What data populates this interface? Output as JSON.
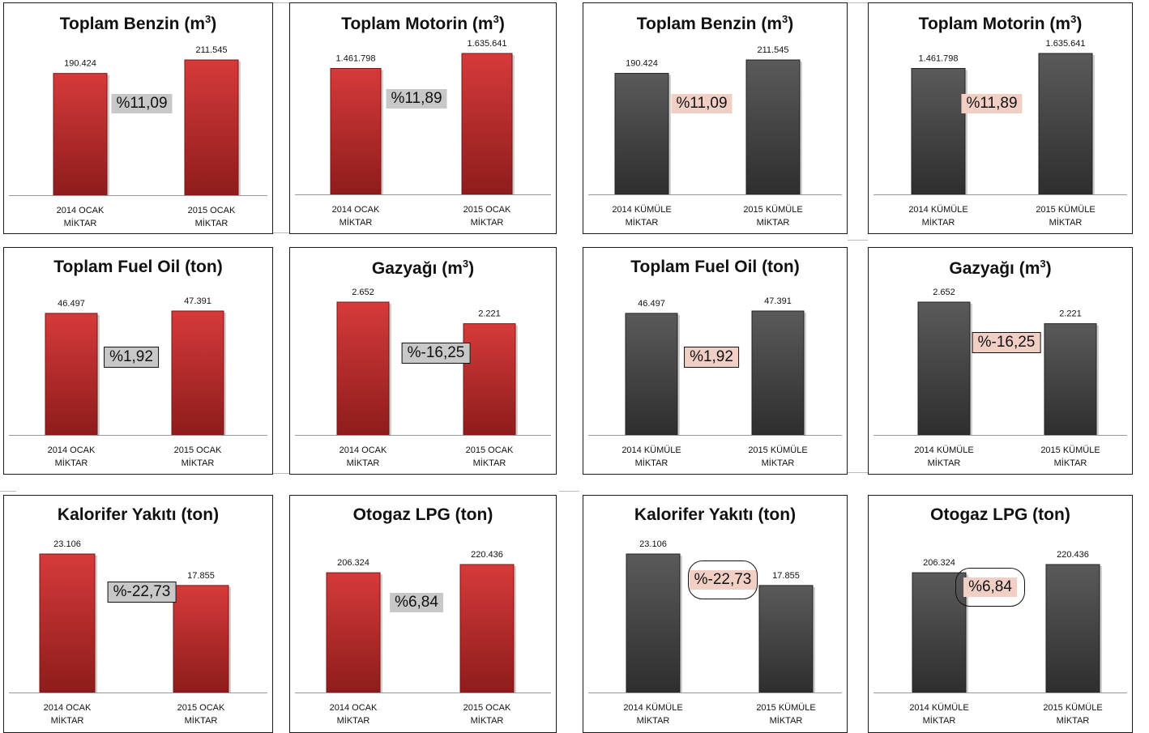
{
  "colors": {
    "red_bar": "#d63a3a",
    "red_bar_dark": "#8e1c1c",
    "grey_bar": "#5a5a5a",
    "grey_bar_dark": "#2e2e2e",
    "pct_grey_bg": "#c8c8c8",
    "pct_pink_bg": "#f2cfc4"
  },
  "chart_data": [
    {
      "type": "bar",
      "title": "Toplam Benzin (m",
      "title_sup": "3",
      "title_end": ")",
      "categories": [
        [
          "2014 OCAK",
          "MİKTAR"
        ],
        [
          "2015 OCAK",
          "MİKTAR"
        ]
      ],
      "values": [
        190424,
        211545
      ],
      "value_labels": [
        "190.424",
        "211.545"
      ],
      "change_label": "%11,09",
      "bar_color": "red",
      "pct_style": "grey"
    },
    {
      "type": "bar",
      "title": "Toplam Motorin (m",
      "title_sup": "3",
      "title_end": ")",
      "categories": [
        [
          "2014 OCAK",
          "MİKTAR"
        ],
        [
          "2015 OCAK",
          "MİKTAR"
        ]
      ],
      "values": [
        1461798,
        1635641
      ],
      "value_labels": [
        "1.461.798",
        "1.635.641"
      ],
      "change_label": "%11,89",
      "bar_color": "red",
      "pct_style": "grey"
    },
    {
      "type": "bar",
      "title": "Toplam Benzin (m",
      "title_sup": "3",
      "title_end": ")",
      "categories": [
        [
          "2014 KÜMÜLE",
          "MİKTAR"
        ],
        [
          "2015 KÜMÜLE",
          "MİKTAR"
        ]
      ],
      "values": [
        190424,
        211545
      ],
      "value_labels": [
        "190.424",
        "211.545"
      ],
      "change_label": "%11,09",
      "bar_color": "grey",
      "pct_style": "pink"
    },
    {
      "type": "bar",
      "title": "Toplam Motorin (m",
      "title_sup": "3",
      "title_end": ")",
      "categories": [
        [
          "2014 KÜMÜLE",
          "MİKTAR"
        ],
        [
          "2015 KÜMÜLE",
          "MİKTAR"
        ]
      ],
      "values": [
        1461798,
        1635641
      ],
      "value_labels": [
        "1.461.798",
        "1.635.641"
      ],
      "change_label": "%11,89",
      "bar_color": "grey",
      "pct_style": "pink"
    },
    {
      "type": "bar",
      "title": "Toplam Fuel Oil (ton)",
      "title_sup": "",
      "title_end": "",
      "categories": [
        [
          "2014 OCAK",
          "MİKTAR"
        ],
        [
          "2015 OCAK",
          "MİKTAR"
        ]
      ],
      "values": [
        46497,
        47391
      ],
      "value_labels": [
        "46.497",
        "47.391"
      ],
      "change_label": "%1,92",
      "bar_color": "red",
      "pct_style": "grey-boxed"
    },
    {
      "type": "bar",
      "title": "Gazyağı (m",
      "title_sup": "3",
      "title_end": ")",
      "categories": [
        [
          "2014 OCAK",
          "MİKTAR"
        ],
        [
          "2015 OCAK",
          "MİKTAR"
        ]
      ],
      "values": [
        2652,
        2221
      ],
      "value_labels": [
        "2.652",
        "2.221"
      ],
      "change_label": "%-16,25",
      "bar_color": "red",
      "pct_style": "grey-boxed"
    },
    {
      "type": "bar",
      "title": "Toplam Fuel Oil (ton)",
      "title_sup": "",
      "title_end": "",
      "categories": [
        [
          "2014 KÜMÜLE",
          "MİKTAR"
        ],
        [
          "2015 KÜMÜLE",
          "MİKTAR"
        ]
      ],
      "values": [
        46497,
        47391
      ],
      "value_labels": [
        "46.497",
        "47.391"
      ],
      "change_label": "%1,92",
      "bar_color": "grey",
      "pct_style": "pink-boxed"
    },
    {
      "type": "bar",
      "title": "Gazyağı  (m",
      "title_sup": "3",
      "title_end": ")",
      "categories": [
        [
          "2014 KÜMÜLE",
          "MİKTAR"
        ],
        [
          "2015 KÜMÜLE",
          "MİKTAR"
        ]
      ],
      "values": [
        2652,
        2221
      ],
      "value_labels": [
        "2.652",
        "2.221"
      ],
      "change_label": "%-16,25",
      "bar_color": "grey",
      "pct_style": "pink-boxed"
    },
    {
      "type": "bar",
      "title": "Kalorifer Yakıtı (ton)",
      "title_sup": "",
      "title_end": "",
      "categories": [
        [
          "2014 OCAK",
          "MİKTAR"
        ],
        [
          "2015 OCAK",
          "MİKTAR"
        ]
      ],
      "values": [
        23106,
        17855
      ],
      "value_labels": [
        "23.106",
        "17.855"
      ],
      "change_label": "%-22,73",
      "bar_color": "red",
      "pct_style": "grey-boxed"
    },
    {
      "type": "bar",
      "title": "Otogaz LPG (ton)",
      "title_sup": "",
      "title_end": "",
      "categories": [
        [
          "2014 OCAK",
          "MİKTAR"
        ],
        [
          "2015 OCAK",
          "MİKTAR"
        ]
      ],
      "values": [
        206324,
        220436
      ],
      "value_labels": [
        "206.324",
        "220.436"
      ],
      "change_label": "%6,84",
      "bar_color": "red",
      "pct_style": "grey"
    },
    {
      "type": "bar",
      "title": "Kalorifer Yakıtı (ton)",
      "title_sup": "",
      "title_end": "",
      "categories": [
        [
          "2014 KÜMÜLE",
          "MİKTAR"
        ],
        [
          "2015 KÜMÜLE",
          "MİKTAR"
        ]
      ],
      "values": [
        23106,
        17855
      ],
      "value_labels": [
        "23.106",
        "17.855"
      ],
      "change_label": "%-22,73",
      "bar_color": "grey",
      "pct_style": "pink-ringed"
    },
    {
      "type": "bar",
      "title": "Otogaz LPG (ton)",
      "title_sup": "",
      "title_end": "",
      "categories": [
        [
          "2014 KÜMÜLE",
          "MİKTAR"
        ],
        [
          "2015 KÜMÜLE",
          "MİKTAR"
        ]
      ],
      "values": [
        206324,
        220436
      ],
      "value_labels": [
        "206.324",
        "220.436"
      ],
      "change_label": "%6,84",
      "bar_color": "grey",
      "pct_style": "pink-ringed"
    }
  ]
}
